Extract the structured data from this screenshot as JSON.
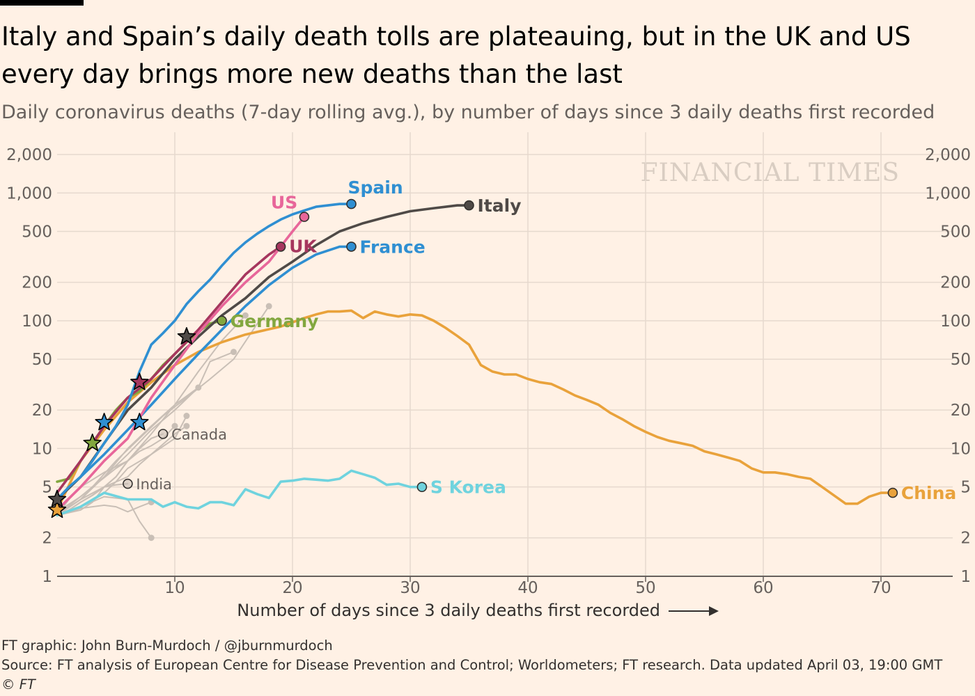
{
  "header": {
    "title": "Italy and Spain’s daily death tolls are plateauing, but in the UK and US every day brings more new deaths than the last",
    "subtitle": "Daily coronavirus deaths (7-day rolling avg.), by number of days since 3 daily deaths first recorded"
  },
  "footer": {
    "credit": "FT graphic: John Burn-Murdoch / @jburnmurdoch",
    "source": "Source: FT analysis of European Centre for Disease Prevention and Control; Worldometers; FT research. Data updated April 03, 19:00 GMT",
    "copyright": "© FT"
  },
  "colors": {
    "background": "#fff1e5",
    "grid": "#e6d9ce",
    "axis": "#66605c",
    "us": "#e8669a",
    "spain": "#2f8fd2",
    "italy": "#4f4a47",
    "uk": "#a6365e",
    "france": "#2f8fd2",
    "germany": "#82a73f",
    "china": "#e9a23b",
    "skorea": "#6fd3de",
    "others": "#c9bfb6"
  },
  "chart_data": {
    "type": "line",
    "title": "Italy and Spain’s daily death tolls are plateauing, but in the UK and US every day brings more new deaths than the last",
    "subtitle": "Daily coronavirus deaths (7-day rolling avg.), by number of days since 3 daily deaths first recorded",
    "xlabel": "Number of days since 3 daily deaths first recorded",
    "ylabel": "",
    "yscale": "log",
    "xlim": [
      0,
      76
    ],
    "ylim": [
      1,
      2000
    ],
    "xticks": [
      10,
      20,
      30,
      40,
      50,
      60,
      70
    ],
    "xtick_labels": [
      "10",
      "20",
      "30",
      "40",
      "50",
      "60",
      "70"
    ],
    "yticks": [
      1,
      2,
      5,
      10,
      20,
      50,
      100,
      200,
      500,
      1000,
      2000
    ],
    "ytick_labels": [
      "1",
      "2",
      "5",
      "10",
      "20",
      "50",
      "100",
      "200",
      "500",
      "1,000",
      "2,000"
    ],
    "watermark": "FINANCIAL TIMES",
    "series": [
      {
        "name": "China",
        "label": "China",
        "color": "#e9a23b",
        "x": [
          0,
          2,
          4,
          6,
          8,
          10,
          12,
          14,
          16,
          19,
          21,
          22,
          23,
          24,
          25,
          26,
          27,
          28,
          29,
          30,
          31,
          32,
          33,
          34,
          35,
          36,
          37,
          38,
          39,
          40,
          41,
          42,
          43,
          44,
          45,
          46,
          47,
          48,
          49,
          50,
          51,
          52,
          53,
          54,
          55,
          56,
          57,
          58,
          59,
          60,
          61,
          62,
          63,
          64,
          65,
          66,
          67,
          68,
          69,
          70,
          71
        ],
        "y": [
          3.3,
          8,
          14,
          23,
          33,
          45,
          57,
          68,
          78,
          90,
          105,
          112,
          118,
          118,
          120,
          105,
          118,
          112,
          108,
          112,
          110,
          100,
          88,
          76,
          65,
          45,
          40,
          38,
          38,
          35,
          33,
          32,
          29,
          26,
          24,
          22,
          19,
          17,
          15,
          13.5,
          12.3,
          11.5,
          11,
          10.5,
          9.5,
          9,
          8.5,
          8,
          7,
          6.5,
          6.5,
          6.3,
          6,
          5.8,
          5,
          4.3,
          3.7,
          3.7,
          4.2,
          4.5,
          4.5
        ]
      },
      {
        "name": "S Korea",
        "label": "S Korea",
        "color": "#6fd3de",
        "x": [
          0,
          2,
          4,
          6,
          8,
          9,
          10,
          11,
          12,
          13,
          14,
          15,
          16,
          17,
          18,
          19,
          20,
          21,
          22,
          23,
          24,
          25,
          26,
          27,
          28,
          29,
          30,
          31
        ],
        "y": [
          3,
          3.5,
          4.5,
          4,
          4,
          3.5,
          3.8,
          3.5,
          3.4,
          3.8,
          3.8,
          3.6,
          4.8,
          4.4,
          4.1,
          5.5,
          5.6,
          5.8,
          5.7,
          5.6,
          5.8,
          6.7,
          6.3,
          5.9,
          5.2,
          5.3,
          5,
          5
        ]
      },
      {
        "name": "Italy",
        "label": "Italy",
        "color": "#4f4a47",
        "x": [
          0,
          2,
          4,
          6,
          8,
          10,
          12,
          14,
          16,
          18,
          20,
          22,
          24,
          26,
          28,
          30,
          32,
          34,
          35
        ],
        "y": [
          4,
          6,
          11,
          20,
          30,
          50,
          75,
          110,
          150,
          220,
          290,
          390,
          500,
          580,
          650,
          720,
          760,
          800,
          800
        ]
      },
      {
        "name": "Spain",
        "label": "Spain",
        "color": "#2f8fd2",
        "x": [
          0,
          1,
          2,
          3,
          4,
          5,
          6,
          7,
          8,
          9,
          10,
          11,
          12,
          13,
          14,
          15,
          16,
          17,
          18,
          19,
          20,
          21,
          22,
          23,
          24,
          25
        ],
        "y": [
          4,
          5,
          6,
          8,
          11,
          15,
          22,
          40,
          65,
          80,
          100,
          135,
          170,
          210,
          270,
          340,
          410,
          480,
          550,
          620,
          680,
          730,
          780,
          800,
          820,
          820
        ]
      },
      {
        "name": "France",
        "label": "France",
        "color": "#2f8fd2",
        "x": [
          0,
          2,
          4,
          6,
          8,
          10,
          12,
          14,
          16,
          18,
          20,
          22,
          24,
          25
        ],
        "y": [
          4,
          6,
          9,
          14,
          22,
          35,
          55,
          85,
          130,
          190,
          260,
          330,
          380,
          380
        ]
      },
      {
        "name": "US",
        "label": "US",
        "color": "#e8669a",
        "x": [
          0,
          2,
          4,
          6,
          8,
          10,
          12,
          14,
          16,
          18,
          20,
          21
        ],
        "y": [
          3.3,
          5,
          8,
          12,
          25,
          45,
          80,
          130,
          200,
          290,
          500,
          650
        ]
      },
      {
        "name": "UK",
        "label": "UK",
        "color": "#a6365e",
        "x": [
          0,
          2,
          4,
          6,
          8,
          10,
          12,
          14,
          16,
          18,
          19
        ],
        "y": [
          4.5,
          8,
          15,
          25,
          35,
          55,
          85,
          140,
          230,
          330,
          380
        ]
      },
      {
        "name": "Germany",
        "label": "Germany",
        "color": "#82a73f",
        "x": [
          0,
          1,
          2,
          3,
          4,
          5,
          6,
          7,
          8,
          9,
          10,
          11,
          12,
          13,
          14
        ],
        "y": [
          5.5,
          5.8,
          8,
          11,
          15,
          20,
          25,
          28,
          35,
          45,
          55,
          68,
          82,
          95,
          100
        ]
      },
      {
        "name": "Canada",
        "label": "Canada",
        "color": "#c9bfb6",
        "x": [
          0,
          2,
          4,
          5,
          6,
          7,
          8,
          9
        ],
        "y": [
          3,
          4,
          5,
          6,
          8,
          10,
          12,
          13
        ]
      },
      {
        "name": "India",
        "label": "India",
        "color": "#c9bfb6",
        "x": [
          0,
          1,
          2,
          3,
          4,
          5,
          6
        ],
        "y": [
          3,
          3.3,
          3.8,
          4.3,
          5.0,
          5.2,
          5.3
        ]
      }
    ],
    "annotations": {
      "stars": [
        {
          "x": 0,
          "y": 3.3,
          "color": "#e9a23b"
        },
        {
          "x": 0,
          "y": 4.0,
          "color": "#4f4a47"
        },
        {
          "x": 3,
          "y": 11,
          "color": "#82a73f"
        },
        {
          "x": 4,
          "y": 16,
          "color": "#2f8fd2"
        },
        {
          "x": 7,
          "y": 16,
          "color": "#2f8fd2"
        },
        {
          "x": 7,
          "y": 33,
          "color": "#a6365e"
        },
        {
          "x": 11,
          "y": 75,
          "color": "#4f4a47"
        }
      ]
    }
  }
}
